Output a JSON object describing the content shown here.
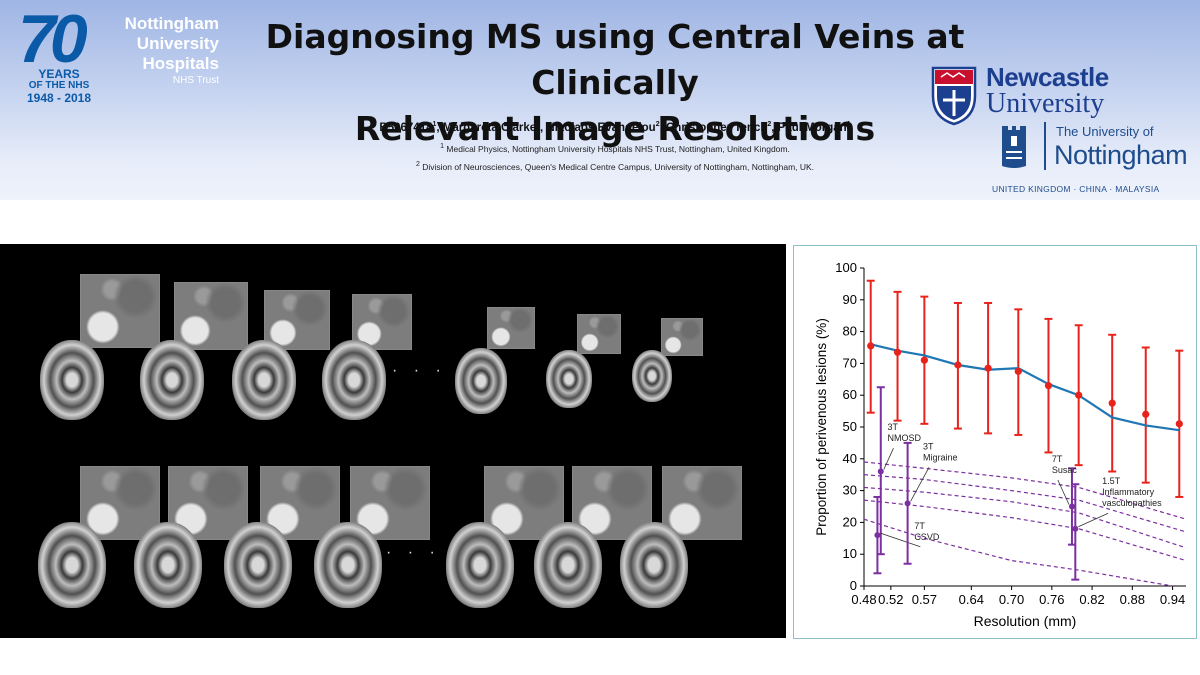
{
  "header": {
    "logo_70": "70",
    "logo_years": "YEARS",
    "logo_of_nhs": "OF THE NHS",
    "logo_years_range": "1948 - 2018",
    "nuh_line1": "Nottingham",
    "nuh_line2": "University",
    "nuh_line3": "Hospitals",
    "nuh_trust": "NHS Trust",
    "title_line1": "Diagnosing  MS using Central Veins at Clinically",
    "title_line2": "Relevant Image Resolutions",
    "authors": [
      {
        "name": "B5067414",
        "sup": "1",
        "sep": ", "
      },
      {
        "name": "Margareta Clarke",
        "sup": "2",
        "sep": ", "
      },
      {
        "name": "Nikolaos Evangelou",
        "sup": "2",
        "sep": ", "
      },
      {
        "name": "Christopher Tench",
        "sup": "2",
        "sep": ", "
      },
      {
        "name": "Paul Morgan",
        "sup": "1",
        "sep": ""
      }
    ],
    "affiliations": [
      {
        "sup": "1",
        "text": " Medical Physics, Nottingham University Hospitals NHS Trust, Nottingham, United Kingdom."
      },
      {
        "sup": "2",
        "text": " Division of Neurosciences, Queen's Medical Centre Campus, University of Nottingham, Nottingham, UK."
      }
    ],
    "newcastle_name": "Newcastle",
    "newcastle_university": "University",
    "uon_the": "The University of",
    "uon_name": "Nottingham",
    "uon_tagline": "UNITED KINGDOM · CHINA · MALAYSIA"
  },
  "mri_panel": {
    "ellipsis": "· · ·"
  },
  "chart_data": {
    "type": "line",
    "xlabel": "Resolution (mm)",
    "ylabel": "Proportion of perivenous lesions (%)",
    "ylim": [
      0,
      100
    ],
    "xlim": [
      0.48,
      0.96
    ],
    "x_ticks": [
      0.48,
      0.52,
      0.57,
      0.64,
      0.7,
      0.76,
      0.82,
      0.88,
      0.94
    ],
    "y_ticks": [
      0,
      10,
      20,
      30,
      40,
      50,
      60,
      70,
      80,
      90,
      100
    ],
    "colors": {
      "ms": "#e8231b",
      "fit": "#1f77b4",
      "other": "#7b2fa0",
      "dashed": "#7b2fa0"
    },
    "ms_points": [
      {
        "x": 0.49,
        "y": 75.5,
        "lo": 54.5,
        "hi": 96
      },
      {
        "x": 0.53,
        "y": 73.5,
        "lo": 52,
        "hi": 92.5
      },
      {
        "x": 0.57,
        "y": 71,
        "lo": 51,
        "hi": 91
      },
      {
        "x": 0.62,
        "y": 69.5,
        "lo": 49.5,
        "hi": 89
      },
      {
        "x": 0.665,
        "y": 68.5,
        "lo": 48,
        "hi": 89
      },
      {
        "x": 0.71,
        "y": 67.5,
        "lo": 47.5,
        "hi": 87
      },
      {
        "x": 0.755,
        "y": 63,
        "lo": 42,
        "hi": 84
      },
      {
        "x": 0.8,
        "y": 60,
        "lo": 38,
        "hi": 82
      },
      {
        "x": 0.85,
        "y": 57.5,
        "lo": 36,
        "hi": 79
      },
      {
        "x": 0.9,
        "y": 54,
        "lo": 32.5,
        "hi": 75
      },
      {
        "x": 0.95,
        "y": 51,
        "lo": 28,
        "hi": 74
      }
    ],
    "fit_line": [
      {
        "x": 0.49,
        "y": 76
      },
      {
        "x": 0.53,
        "y": 74
      },
      {
        "x": 0.57,
        "y": 72.5
      },
      {
        "x": 0.62,
        "y": 69.5
      },
      {
        "x": 0.665,
        "y": 68
      },
      {
        "x": 0.71,
        "y": 68.5
      },
      {
        "x": 0.755,
        "y": 63.5
      },
      {
        "x": 0.8,
        "y": 60
      },
      {
        "x": 0.85,
        "y": 53
      },
      {
        "x": 0.9,
        "y": 50.5
      },
      {
        "x": 0.95,
        "y": 49
      }
    ],
    "other_points": [
      {
        "label": "3T\nNMOSD",
        "x": 0.505,
        "y": 36,
        "lo": 10,
        "hi": 62.5,
        "label_x": 0.515,
        "label_y": 49
      },
      {
        "label": "7T\nCSVD",
        "x": 0.5,
        "y": 16,
        "lo": 4,
        "hi": 28,
        "label_x": 0.555,
        "label_y": 18
      },
      {
        "label": "3T\nMigraine",
        "x": 0.545,
        "y": 26,
        "lo": 7,
        "hi": 45,
        "label_x": 0.568,
        "label_y": 43
      },
      {
        "label": "7T\nSusac",
        "x": 0.79,
        "y": 25,
        "lo": 13,
        "hi": 37,
        "label_x": 0.76,
        "label_y": 39
      },
      {
        "label": "1.5T\nInflammatory\nvasculopathies",
        "x": 0.795,
        "y": 18,
        "lo": 2,
        "hi": 32,
        "label_x": 0.835,
        "label_y": 32
      }
    ],
    "dashed_lines": [
      [
        {
          "x": 0.48,
          "y": 39
        },
        {
          "x": 0.57,
          "y": 37
        },
        {
          "x": 0.7,
          "y": 34
        },
        {
          "x": 0.8,
          "y": 31
        },
        {
          "x": 0.96,
          "y": 21
        }
      ],
      [
        {
          "x": 0.48,
          "y": 35
        },
        {
          "x": 0.57,
          "y": 33.5
        },
        {
          "x": 0.7,
          "y": 30
        },
        {
          "x": 0.8,
          "y": 27
        },
        {
          "x": 0.96,
          "y": 17
        }
      ],
      [
        {
          "x": 0.48,
          "y": 31
        },
        {
          "x": 0.57,
          "y": 29.5
        },
        {
          "x": 0.7,
          "y": 26.5
        },
        {
          "x": 0.8,
          "y": 23
        },
        {
          "x": 0.96,
          "y": 12
        }
      ],
      [
        {
          "x": 0.48,
          "y": 27
        },
        {
          "x": 0.57,
          "y": 25
        },
        {
          "x": 0.7,
          "y": 21.5
        },
        {
          "x": 0.8,
          "y": 18
        },
        {
          "x": 0.96,
          "y": 8
        }
      ],
      [
        {
          "x": 0.48,
          "y": 21
        },
        {
          "x": 0.57,
          "y": 15
        },
        {
          "x": 0.7,
          "y": 8
        },
        {
          "x": 0.8,
          "y": 5
        },
        {
          "x": 0.94,
          "y": 0
        }
      ]
    ]
  }
}
